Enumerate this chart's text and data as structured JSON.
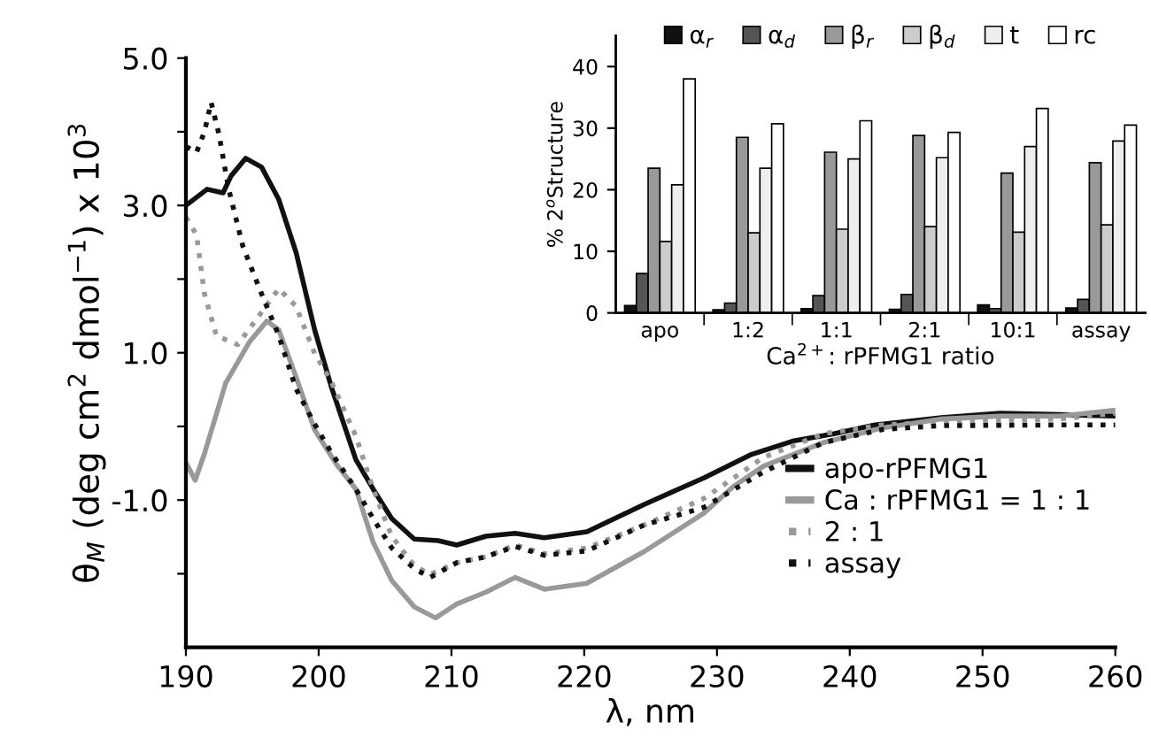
{
  "chart_data": [
    {
      "type": "line",
      "xlabel": "λ, nm",
      "ylabel": "θ$_{M}$ (deg cm$^{2}$ dmol$^{−1}$) x 10$^{3}$",
      "xlim": [
        190,
        260
      ],
      "xticks": [
        190,
        200,
        210,
        220,
        230,
        240,
        250,
        260
      ],
      "ylim": [
        -3,
        5
      ],
      "yticks": [
        {
          "value": 5,
          "label": "5.0"
        },
        {
          "value": 4,
          "label": null
        },
        {
          "value": 3,
          "label": "3.0"
        },
        {
          "value": 2,
          "label": null
        },
        {
          "value": 1,
          "label": "1.0"
        },
        {
          "value": 0,
          "label": null
        },
        {
          "value": -1,
          "label": "-1.0"
        },
        {
          "value": -2,
          "label": null
        }
      ],
      "grid": false,
      "legend": "right",
      "series": [
        {
          "name": "apo-rPFMG1",
          "color": "#111111",
          "line_style": "solid",
          "x": [
            190,
            191.6,
            192.8,
            193.4,
            194.5,
            195.7,
            197,
            198.3,
            199.7,
            201,
            202.8,
            204.1,
            205.5,
            207.2,
            209,
            210.4,
            212.6,
            214.8,
            217,
            220.2,
            224.5,
            229,
            232.6,
            235.7,
            238.8,
            241.9,
            246.9,
            251.3,
            255.8,
            260
          ],
          "values": [
            3.0,
            3.22,
            3.17,
            3.4,
            3.64,
            3.52,
            3.08,
            2.36,
            1.31,
            0.51,
            -0.45,
            -0.85,
            -1.25,
            -1.53,
            -1.55,
            -1.61,
            -1.49,
            -1.45,
            -1.51,
            -1.43,
            -1.06,
            -0.7,
            -0.38,
            -0.2,
            -0.1,
            0.02,
            0.12,
            0.18,
            0.16,
            0.14
          ]
        },
        {
          "name": "Ca : rPFMG1 = 1 : 1",
          "color": "#999999",
          "line_style": "solid",
          "x": [
            190,
            190.7,
            191.4,
            193,
            194.8,
            196.1,
            197,
            198.3,
            199.7,
            201.4,
            202.8,
            204.1,
            205.5,
            207.2,
            208.8,
            210.4,
            212.6,
            214.8,
            217,
            220.2,
            224.5,
            229,
            231.2,
            233.5,
            238,
            242.5,
            246.9,
            251.3,
            255.8,
            260
          ],
          "values": [
            -0.49,
            -0.73,
            -0.37,
            0.59,
            1.15,
            1.43,
            1.31,
            0.67,
            -0.05,
            -0.53,
            -0.85,
            -1.57,
            -2.09,
            -2.45,
            -2.6,
            -2.41,
            -2.25,
            -2.05,
            -2.21,
            -2.13,
            -1.7,
            -1.18,
            -0.82,
            -0.54,
            -0.22,
            -0.02,
            0.1,
            0.14,
            0.14,
            0.22
          ]
        },
        {
          "name": "2 : 1",
          "color": "#999999",
          "line_style": "dotted",
          "x": [
            190,
            190.8,
            191.4,
            192.3,
            193.9,
            195.7,
            197,
            198.3,
            199.7,
            201,
            202.8,
            204.1,
            205.5,
            207.2,
            208.4,
            210.4,
            212.6,
            214.8,
            217,
            220.2,
            224.5,
            229,
            233.5,
            238,
            242.5,
            246.9,
            255.8,
            260
          ],
          "values": [
            2.84,
            2.6,
            1.8,
            1.23,
            1.11,
            1.55,
            1.87,
            1.63,
            0.99,
            0.59,
            -0.13,
            -0.85,
            -1.49,
            -1.89,
            -2.01,
            -1.85,
            -1.77,
            -1.61,
            -1.73,
            -1.65,
            -1.34,
            -0.98,
            -0.42,
            -0.1,
            0.02,
            0.06,
            0.1,
            0.18
          ]
        },
        {
          "name": "assay",
          "color": "#111111",
          "line_style": "dotted",
          "x": [
            190,
            190.8,
            191.4,
            191.9,
            192.5,
            193.2,
            194.3,
            195.7,
            197,
            198.3,
            199.7,
            201,
            202.8,
            204.1,
            205.5,
            207.2,
            208.4,
            210.4,
            212.6,
            214.8,
            217,
            220.2,
            224.5,
            229,
            233.5,
            238,
            242.5,
            246.9,
            255.8,
            260
          ],
          "values": [
            3.8,
            3.72,
            4.0,
            4.4,
            3.96,
            3.24,
            2.44,
            1.8,
            1.23,
            0.51,
            0.03,
            -0.37,
            -0.85,
            -1.25,
            -1.65,
            -1.93,
            -2.05,
            -1.85,
            -1.77,
            -1.63,
            -1.75,
            -1.69,
            -1.34,
            -1.1,
            -0.62,
            -0.22,
            -0.04,
            0.01,
            0.02,
            0.02
          ]
        }
      ]
    },
    {
      "type": "bar",
      "xlabel": "Ca$^{2+}$: rPFMG1 ratio",
      "ylabel": "% 2$^{o}$Structure",
      "categories": [
        "apo",
        "1:2",
        "1:1",
        "2:1",
        "10:1",
        "assay"
      ],
      "ylim": [
        0,
        45
      ],
      "yticks": [
        0,
        10,
        20,
        30,
        40
      ],
      "grid": false,
      "legend": "top",
      "series": [
        {
          "name": "α$_{r}$",
          "color": "#111111",
          "values": [
            1.2,
            0.5,
            0.7,
            0.6,
            1.3,
            0.8
          ]
        },
        {
          "name": "α$_{d}$",
          "color": "#555555",
          "values": [
            6.4,
            1.6,
            2.8,
            3.0,
            0.7,
            2.2
          ]
        },
        {
          "name": "β$_{r}$",
          "color": "#999999",
          "values": [
            23.5,
            28.5,
            26.1,
            28.8,
            22.7,
            24.4
          ]
        },
        {
          "name": "β$_{d}$",
          "color": "#cccccc",
          "values": [
            11.6,
            13.0,
            13.6,
            14.0,
            13.1,
            14.3
          ]
        },
        {
          "name": "t",
          "color": "#eeeeee",
          "values": [
            20.8,
            23.5,
            25.0,
            25.2,
            27.0,
            27.9
          ]
        },
        {
          "name": "rc",
          "color": "#ffffff",
          "values": [
            38.0,
            30.7,
            31.2,
            29.3,
            33.2,
            30.5
          ]
        }
      ]
    }
  ]
}
